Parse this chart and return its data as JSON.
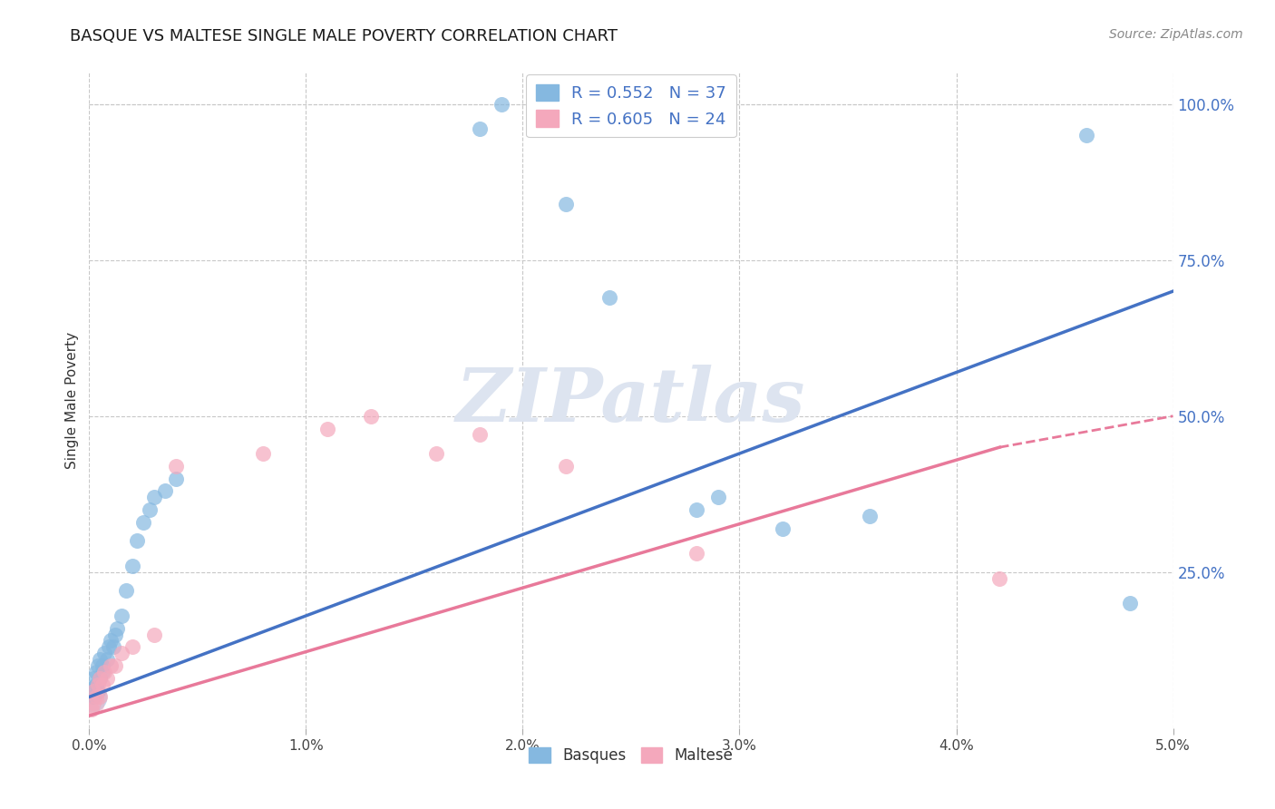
{
  "title": "BASQUE VS MALTESE SINGLE MALE POVERTY CORRELATION CHART",
  "source": "Source: ZipAtlas.com",
  "ylabel": "Single Male Poverty",
  "xlim": [
    0.0,
    0.05
  ],
  "ylim": [
    0.0,
    1.05
  ],
  "xtick_labels": [
    "0.0%",
    "1.0%",
    "2.0%",
    "3.0%",
    "4.0%",
    "5.0%"
  ],
  "xtick_vals": [
    0.0,
    0.01,
    0.02,
    0.03,
    0.04,
    0.05
  ],
  "ytick_labels": [
    "100.0%",
    "75.0%",
    "50.0%",
    "25.0%"
  ],
  "ytick_vals": [
    1.0,
    0.75,
    0.5,
    0.25
  ],
  "basque_color": "#85b8e0",
  "maltese_color": "#f4a8bc",
  "basque_R": 0.552,
  "basque_N": 37,
  "maltese_R": 0.605,
  "maltese_N": 24,
  "trend_blue": "#4472c4",
  "trend_pink": "#e8799a",
  "background_color": "#ffffff",
  "grid_color": "#c8c8c8",
  "title_color": "#1a1a1a",
  "legend_label_color": "#4472c4",
  "source_color": "#888888",
  "basque_x": [
    0.0001,
    0.0002,
    0.0002,
    0.0003,
    0.0003,
    0.0004,
    0.0004,
    0.0005,
    0.0005,
    0.0006,
    0.0006,
    0.0007,
    0.0008,
    0.0009,
    0.001,
    0.0011,
    0.0012,
    0.0013,
    0.0015,
    0.0017,
    0.002,
    0.0022,
    0.0025,
    0.0028,
    0.003,
    0.0035,
    0.004,
    0.018,
    0.019,
    0.022,
    0.024,
    0.028,
    0.029,
    0.032,
    0.036,
    0.046,
    0.048
  ],
  "basque_y": [
    0.06,
    0.05,
    0.08,
    0.07,
    0.09,
    0.06,
    0.1,
    0.08,
    0.11,
    0.09,
    0.1,
    0.12,
    0.11,
    0.13,
    0.14,
    0.13,
    0.15,
    0.16,
    0.18,
    0.22,
    0.26,
    0.3,
    0.33,
    0.35,
    0.37,
    0.38,
    0.4,
    0.96,
    1.0,
    0.84,
    0.69,
    0.35,
    0.37,
    0.32,
    0.34,
    0.95,
    0.2
  ],
  "maltese_x": [
    0.0001,
    0.0002,
    0.0002,
    0.0003,
    0.0004,
    0.0005,
    0.0005,
    0.0006,
    0.0007,
    0.0008,
    0.001,
    0.0012,
    0.0015,
    0.002,
    0.003,
    0.004,
    0.008,
    0.011,
    0.013,
    0.016,
    0.018,
    0.022,
    0.028,
    0.042
  ],
  "maltese_y": [
    0.03,
    0.04,
    0.06,
    0.05,
    0.07,
    0.05,
    0.08,
    0.07,
    0.09,
    0.08,
    0.1,
    0.1,
    0.12,
    0.13,
    0.15,
    0.42,
    0.44,
    0.48,
    0.5,
    0.44,
    0.47,
    0.42,
    0.28,
    0.24
  ],
  "watermark_text": "ZIPatlas",
  "watermark_color": "#dde4f0"
}
